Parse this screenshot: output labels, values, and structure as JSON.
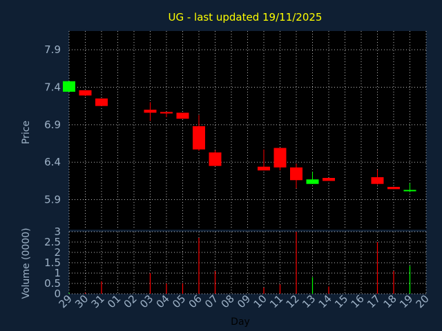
{
  "chart_data": {
    "type": "candlestick",
    "title": "UG - last updated 19/11/2025",
    "xlabel": "Day",
    "price_ylabel": "Price",
    "volume_ylabel": "Volume (0000)",
    "price_ylim": [
      5.5,
      8.15
    ],
    "price_ticks": [
      "5.9",
      "6.4",
      "6.9",
      "7.4",
      "7.9"
    ],
    "volume_ylim": [
      0,
      3
    ],
    "volume_ticks": [
      "0",
      "0.5",
      "1",
      "1.5",
      "2",
      "2.5",
      "3"
    ],
    "x_ticks": [
      "29",
      "30",
      "31",
      "01",
      "02",
      "03",
      "04",
      "05",
      "06",
      "07",
      "08",
      "09",
      "10",
      "11",
      "12",
      "13",
      "14",
      "15",
      "16",
      "17",
      "18",
      "19",
      "20"
    ],
    "grid": true,
    "colors": {
      "background": "#0f1f33",
      "plot": "#000000",
      "up": "#00ff00",
      "down": "#ff0000",
      "grid": "#ffffff",
      "title": "#ffff00",
      "axis_text": "#9fb3c8"
    },
    "candles": [
      {
        "day": "29",
        "open": 7.34,
        "high": 7.48,
        "low": 7.34,
        "close": 7.48,
        "dir": "up"
      },
      {
        "day": "30",
        "open": 7.36,
        "high": 7.36,
        "low": 7.28,
        "close": 7.29,
        "dir": "down"
      },
      {
        "day": "31",
        "open": 7.25,
        "high": 7.25,
        "low": 7.15,
        "close": 7.15,
        "dir": "down"
      },
      {
        "day": "03",
        "open": 7.1,
        "high": 7.2,
        "low": 6.95,
        "close": 7.06,
        "dir": "down"
      },
      {
        "day": "04",
        "open": 7.07,
        "high": 7.07,
        "low": 7.0,
        "close": 7.05,
        "dir": "down"
      },
      {
        "day": "05",
        "open": 7.06,
        "high": 7.06,
        "low": 6.98,
        "close": 6.98,
        "dir": "down"
      },
      {
        "day": "06",
        "open": 6.88,
        "high": 7.03,
        "low": 6.55,
        "close": 6.57,
        "dir": "down"
      },
      {
        "day": "07",
        "open": 6.53,
        "high": 6.56,
        "low": 6.35,
        "close": 6.35,
        "dir": "down"
      },
      {
        "day": "10",
        "open": 6.34,
        "high": 6.57,
        "low": 6.29,
        "close": 6.29,
        "dir": "down"
      },
      {
        "day": "11",
        "open": 6.59,
        "high": 6.59,
        "low": 6.29,
        "close": 6.33,
        "dir": "down"
      },
      {
        "day": "12",
        "open": 6.33,
        "high": 6.38,
        "low": 6.05,
        "close": 6.16,
        "dir": "down"
      },
      {
        "day": "13",
        "open": 6.11,
        "high": 6.27,
        "low": 6.11,
        "close": 6.17,
        "dir": "up"
      },
      {
        "day": "14",
        "open": 6.19,
        "high": 6.19,
        "low": 6.15,
        "close": 6.15,
        "dir": "down"
      },
      {
        "day": "17",
        "open": 6.2,
        "high": 6.3,
        "low": 6.1,
        "close": 6.11,
        "dir": "down"
      },
      {
        "day": "18",
        "open": 6.07,
        "high": 6.07,
        "low": 6.04,
        "close": 6.04,
        "dir": "down"
      },
      {
        "day": "19",
        "open": 6.02,
        "high": 6.12,
        "low": 6.0,
        "close": 6.03,
        "dir": "up"
      }
    ],
    "volume": [
      {
        "day": "29",
        "value": 0.05,
        "dir": "up"
      },
      {
        "day": "30",
        "value": 0.05,
        "dir": "down"
      },
      {
        "day": "31",
        "value": 0.6,
        "dir": "down"
      },
      {
        "day": "03",
        "value": 1.0,
        "dir": "down"
      },
      {
        "day": "04",
        "value": 0.5,
        "dir": "down"
      },
      {
        "day": "05",
        "value": 0.5,
        "dir": "down"
      },
      {
        "day": "06",
        "value": 2.7,
        "dir": "down"
      },
      {
        "day": "07",
        "value": 1.1,
        "dir": "down"
      },
      {
        "day": "10",
        "value": 0.3,
        "dir": "down"
      },
      {
        "day": "11",
        "value": 0.45,
        "dir": "down"
      },
      {
        "day": "12",
        "value": 3.0,
        "dir": "down"
      },
      {
        "day": "13",
        "value": 0.8,
        "dir": "up"
      },
      {
        "day": "14",
        "value": 0.35,
        "dir": "down"
      },
      {
        "day": "17",
        "value": 2.5,
        "dir": "down"
      },
      {
        "day": "18",
        "value": 1.1,
        "dir": "down"
      },
      {
        "day": "19",
        "value": 1.35,
        "dir": "up"
      }
    ]
  }
}
